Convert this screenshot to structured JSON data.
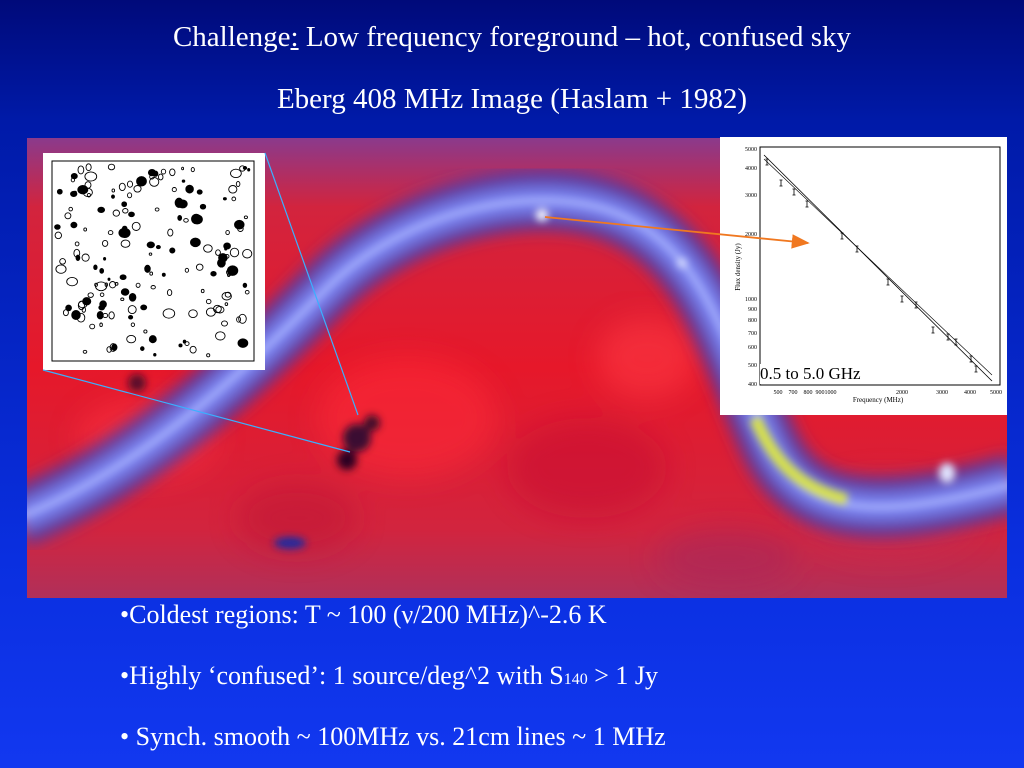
{
  "title": {
    "line1_prefix": "Challenge",
    "line1_colon": ":",
    "line1_rest": " Low frequency foreground – hot, confused sky",
    "line2": "Eberg 408 MHz Image (Haslam + 1982)"
  },
  "spectrum": {
    "range_label": "0.5 to 5.0 GHz",
    "xlabel": "Frequency (MHz)",
    "ylabel": "Flux density (Jy)",
    "x_ticks": [
      "500",
      "700",
      "800",
      "9001000",
      "2000",
      "3000",
      "4000",
      "5000"
    ],
    "y_ticks": [
      "5000",
      "4000",
      "3000",
      "2000",
      "1000",
      "900",
      "800",
      "700",
      "600",
      "500",
      "400"
    ]
  },
  "bullets": {
    "b1": "•Coldest regions: T ~ 100 (ν/200 MHz)^-2.6 K",
    "b2_pre": "•Highly ‘confused’: 1 source/deg^2 with S",
    "b2_sub": "140",
    "b2_post": " > 1 Jy",
    "b3": "• Synch.  smooth ~ 100MHz vs. 21cm lines ~ 1 MHz"
  },
  "colors": {
    "background": "#1238f0",
    "map_red": "#e2182a",
    "plane_blue": "#6f7cf0",
    "arrow_orange": "#f07820",
    "connector_cyan": "#3ab0ff"
  }
}
